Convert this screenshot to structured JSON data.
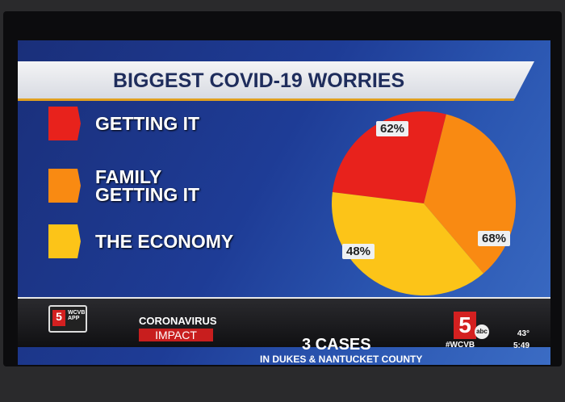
{
  "chart_data": {
    "type": "pie",
    "title": "BIGGEST COVID-19 WORRIES",
    "categories": [
      "GETTING IT",
      "FAMILY GETTING IT",
      "THE ECONOMY"
    ],
    "values": [
      48,
      62,
      68
    ],
    "labels": [
      "48%",
      "62%",
      "68%"
    ],
    "colors": [
      "#e8221c",
      "#f98a12",
      "#fcc418"
    ],
    "legend": "left"
  },
  "ticker": {
    "app_label": "WCVB APP",
    "app_logo": "5",
    "section": "CORONAVIRUS",
    "section_tag": "IMPACT",
    "headline": "3 CASES",
    "subheadline": "IN DUKES & NANTUCKET COUNTY",
    "station_logo": "5",
    "network": "abc",
    "hashtag": "#WCVB",
    "temperature": "43°",
    "time": "5:49"
  }
}
